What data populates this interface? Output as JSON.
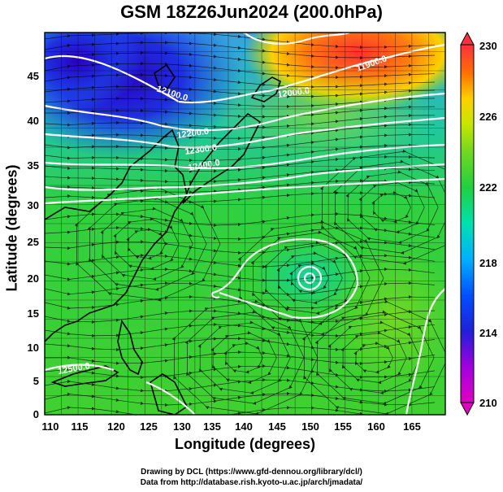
{
  "title": "GSM 18Z26Jun2024 (200.0hPa)",
  "x_axis": {
    "label": "Longitude (degrees)",
    "ticks": [
      "110",
      "115",
      "120",
      "125",
      "130",
      "135",
      "140",
      "145",
      "150",
      "155",
      "160",
      "165"
    ]
  },
  "y_axis": {
    "label": "Latitude  (degrees)",
    "ticks": [
      "0",
      "5",
      "10",
      "15",
      "20",
      "25",
      "30",
      "35",
      "40",
      "45"
    ]
  },
  "colorbar": {
    "ticks": [
      "210",
      "214",
      "218",
      "222",
      "226",
      "230"
    ]
  },
  "contour_labels": [
    "12100.0",
    "11900.0",
    "12000.0",
    "12200.0",
    "12300.0",
    "12400.0",
    "12500.0"
  ],
  "credits": {
    "line1": "Drawing by DCL (https://www.gfd-dennou.org/library/dcl/)",
    "line2": "Data from http://database.rish.kyoto-u.ac.jp/arch/jmadata/"
  },
  "chart_data": {
    "type": "heatmap",
    "title": "GSM 18Z26Jun2024 (200.0hPa)",
    "xlabel": "Longitude (degrees)",
    "ylabel": "Latitude  (degrees)",
    "xlim": [
      110,
      170
    ],
    "ylim": [
      0,
      50
    ],
    "colorbar_range": [
      210,
      230
    ],
    "colormap": [
      "#e600c8",
      "#6a00e0",
      "#0000d0",
      "#0050ff",
      "#00c8ff",
      "#00e0a0",
      "#20d040",
      "#60d020",
      "#c8e600",
      "#ffd000",
      "#ff7000",
      "#ff3c30"
    ],
    "contour_levels": [
      11900,
      12000,
      12100,
      12200,
      12300,
      12400,
      12500
    ],
    "streamlines": true,
    "grid": true
  }
}
